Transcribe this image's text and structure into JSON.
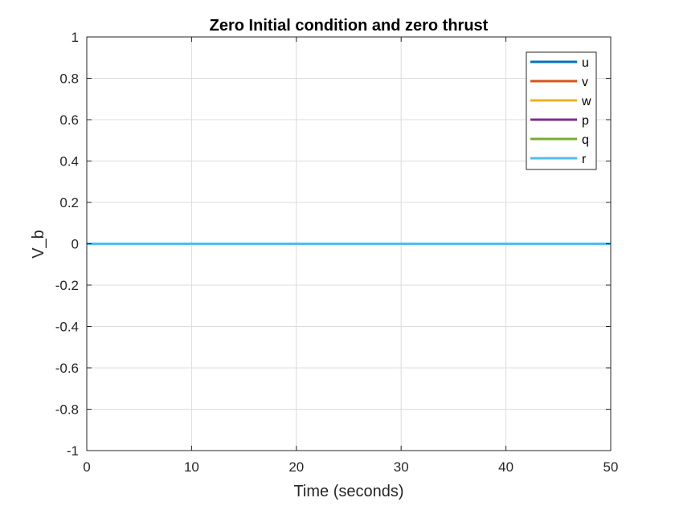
{
  "chart_data": {
    "type": "line",
    "title": "Zero Initial condition and zero thrust",
    "xlabel": "Time (seconds)",
    "ylabel": "V_b",
    "xlim": [
      0,
      50
    ],
    "ylim": [
      -1,
      1
    ],
    "xticks": [
      0,
      10,
      20,
      30,
      40,
      50
    ],
    "xtick_labels": [
      "0",
      "10",
      "20",
      "30",
      "40",
      "50"
    ],
    "yticks": [
      -1,
      -0.8,
      -0.6,
      -0.4,
      -0.2,
      0,
      0.2,
      0.4,
      0.6,
      0.8,
      1
    ],
    "ytick_labels": [
      "-1",
      "-0.8",
      "-0.6",
      "-0.4",
      "-0.2",
      "0",
      "0.2",
      "0.4",
      "0.6",
      "0.8",
      "1"
    ],
    "grid": true,
    "legend_position": "top-right",
    "x": [
      0,
      50
    ],
    "series": [
      {
        "name": "u",
        "values": [
          0,
          0
        ],
        "color": "#0072BD"
      },
      {
        "name": "v",
        "values": [
          0,
          0
        ],
        "color": "#D95319"
      },
      {
        "name": "w",
        "values": [
          0,
          0
        ],
        "color": "#EDB120"
      },
      {
        "name": "p",
        "values": [
          0,
          0
        ],
        "color": "#7E2F8E"
      },
      {
        "name": "q",
        "values": [
          0,
          0
        ],
        "color": "#77AC30"
      },
      {
        "name": "r",
        "values": [
          0,
          0
        ],
        "color": "#4DBEEE"
      }
    ]
  }
}
